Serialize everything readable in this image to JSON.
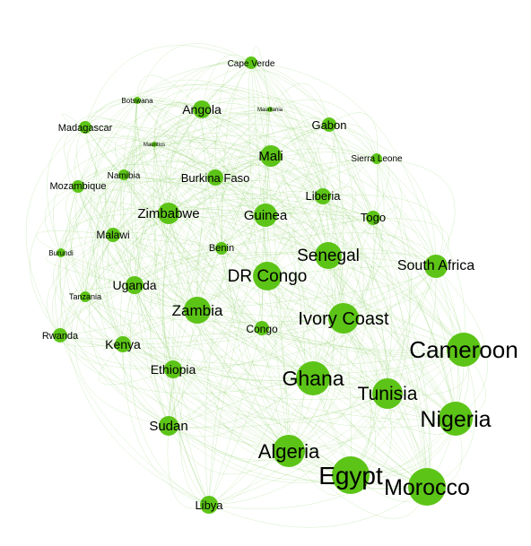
{
  "graph": {
    "edge_color": "#8fd16a",
    "node_color": "#5cc417",
    "nodes": [
      {
        "id": "Cape Verde",
        "label": "Cape Verde"
      },
      {
        "id": "Botswana",
        "label": "Botswana"
      },
      {
        "id": "Angola",
        "label": "Angola"
      },
      {
        "id": "Mauritania",
        "label": "Mauritania"
      },
      {
        "id": "Madagascar",
        "label": "Madagascar"
      },
      {
        "id": "Gabon",
        "label": "Gabon"
      },
      {
        "id": "Mauritius",
        "label": "Mauritius"
      },
      {
        "id": "Mali",
        "label": "Mali"
      },
      {
        "id": "Sierra Leone",
        "label": "Sierra Leone"
      },
      {
        "id": "Namibia",
        "label": "Namibia"
      },
      {
        "id": "Burkina Faso",
        "label": "Burkina Faso"
      },
      {
        "id": "Mozambique",
        "label": "Mozambique"
      },
      {
        "id": "Liberia",
        "label": "Liberia"
      },
      {
        "id": "Zimbabwe",
        "label": "Zimbabwe"
      },
      {
        "id": "Guinea",
        "label": "Guinea"
      },
      {
        "id": "Togo",
        "label": "Togo"
      },
      {
        "id": "Malawi",
        "label": "Malawi"
      },
      {
        "id": "Benin",
        "label": "Benin"
      },
      {
        "id": "Burundi",
        "label": "Burundi"
      },
      {
        "id": "Senegal",
        "label": "Senegal"
      },
      {
        "id": "South Africa",
        "label": "South Africa"
      },
      {
        "id": "DR Congo",
        "label": "DR Congo"
      },
      {
        "id": "Uganda",
        "label": "Uganda"
      },
      {
        "id": "Tanzania",
        "label": "Tanzania"
      },
      {
        "id": "Zambia",
        "label": "Zambia"
      },
      {
        "id": "Ivory Coast",
        "label": "Ivory Coast"
      },
      {
        "id": "Congo",
        "label": "Congo"
      },
      {
        "id": "Rwanda",
        "label": "Rwanda"
      },
      {
        "id": "Kenya",
        "label": "Kenya"
      },
      {
        "id": "Cameroon",
        "label": "Cameroon"
      },
      {
        "id": "Ethiopia",
        "label": "Ethiopia"
      },
      {
        "id": "Ghana",
        "label": "Ghana"
      },
      {
        "id": "Tunisia",
        "label": "Tunisia"
      },
      {
        "id": "Nigeria",
        "label": "Nigeria"
      },
      {
        "id": "Sudan",
        "label": "Sudan"
      },
      {
        "id": "Algeria",
        "label": "Algeria"
      },
      {
        "id": "Egypt",
        "label": "Egypt"
      },
      {
        "id": "Morocco",
        "label": "Morocco"
      },
      {
        "id": "Libya",
        "label": "Libya"
      }
    ]
  }
}
